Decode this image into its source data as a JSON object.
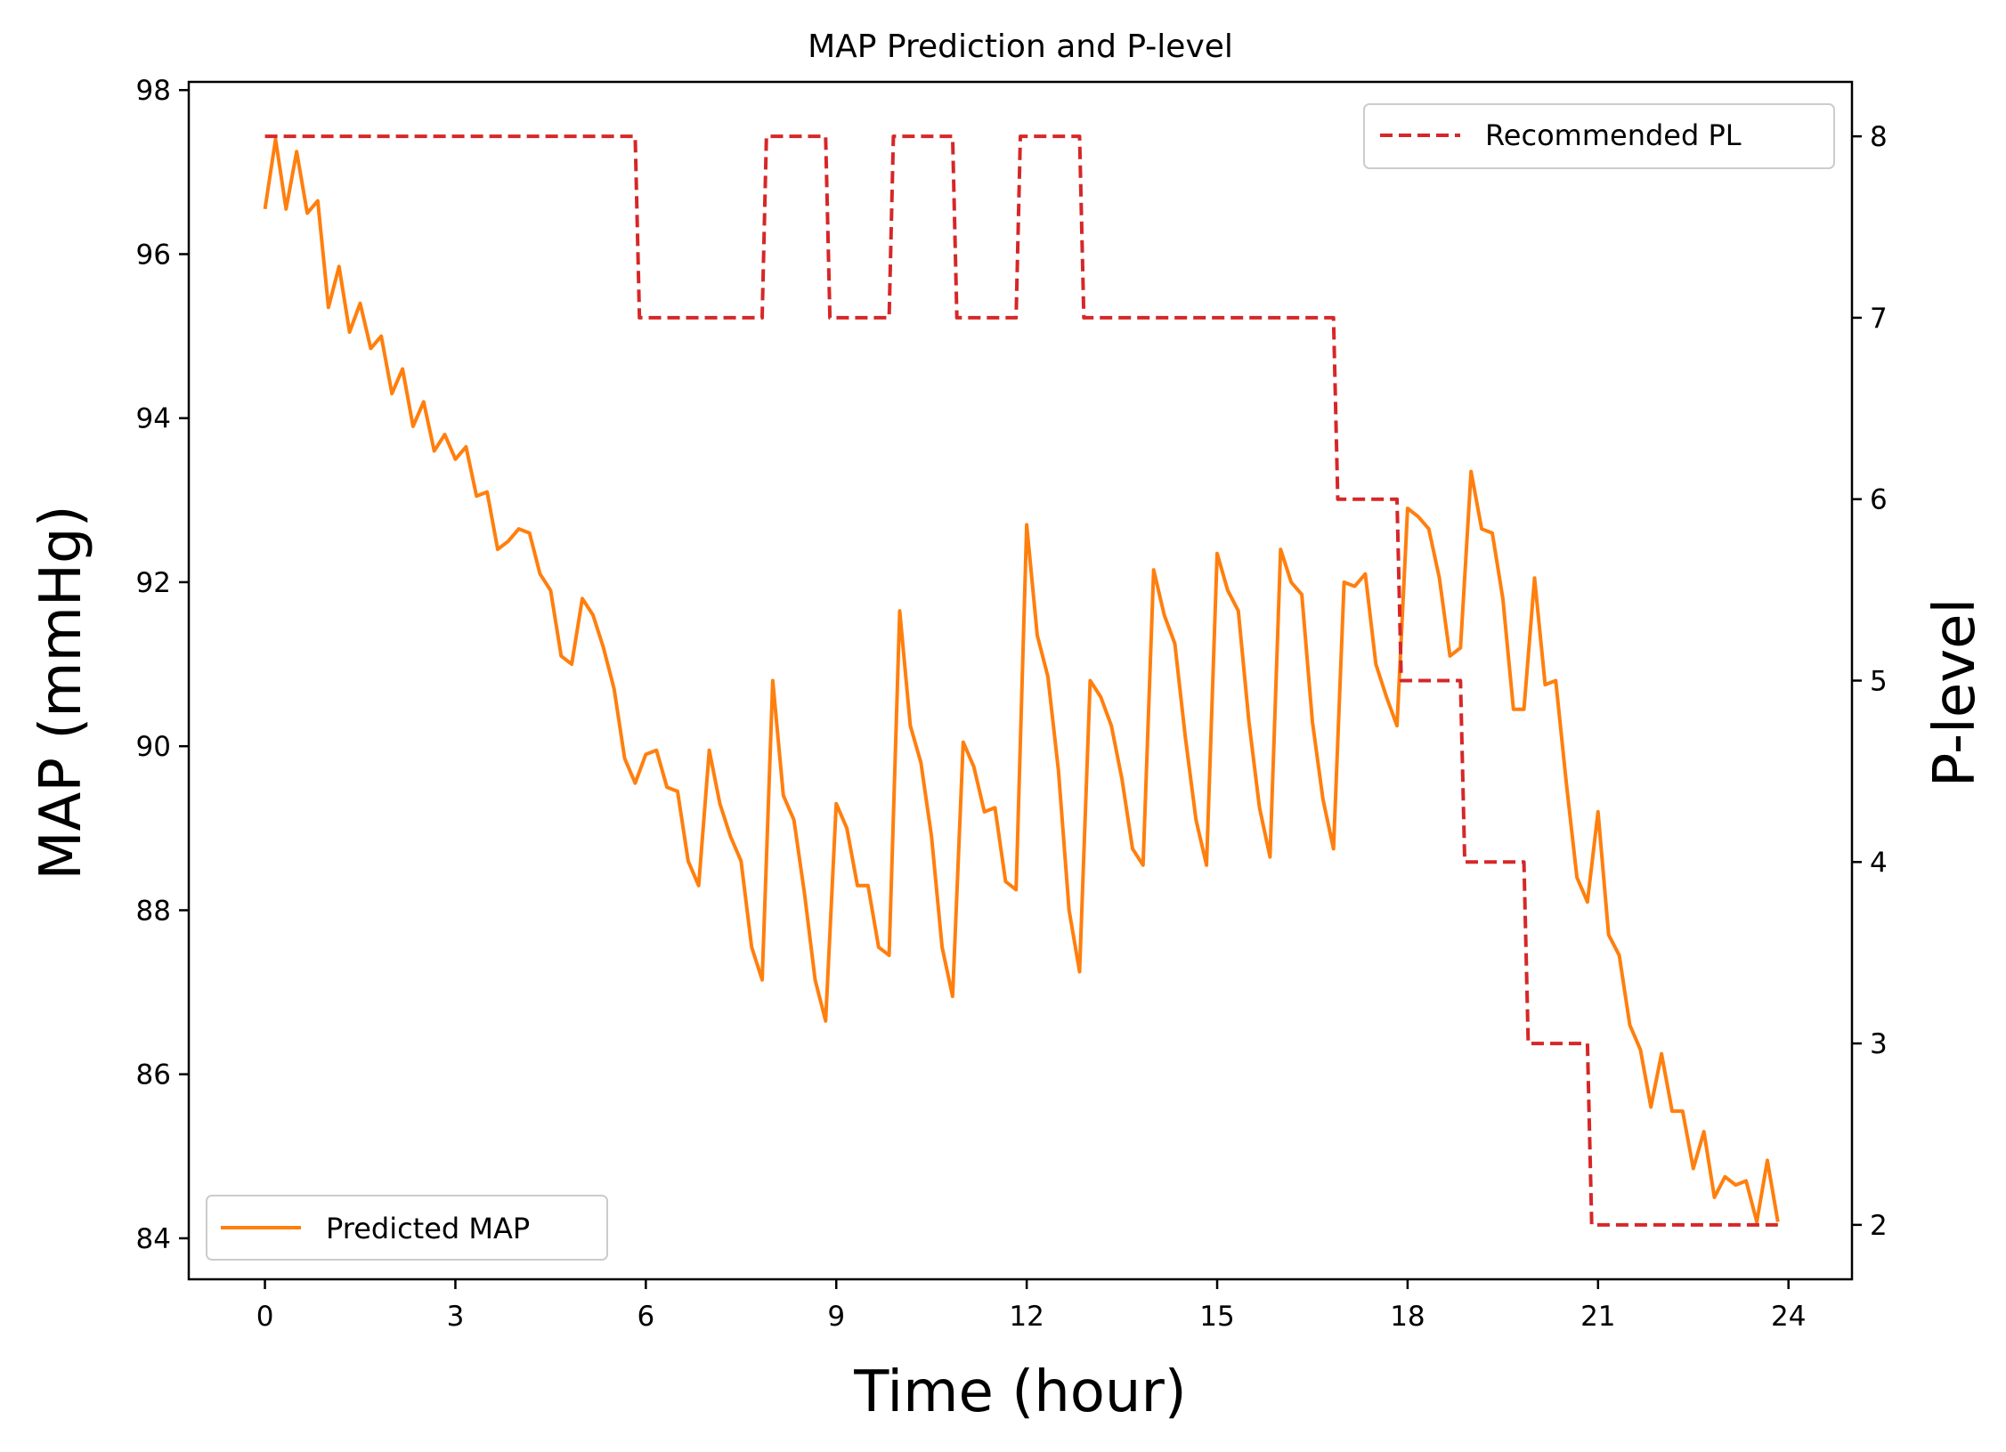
{
  "chart_data": {
    "type": "line",
    "title": "MAP Prediction and P-level",
    "xlabel": "Time (hour)",
    "ylabel": "MAP (mmHg)",
    "y2label": "P-level",
    "xlim": [
      -1.2,
      25
    ],
    "ylim": [
      83.5,
      98.1
    ],
    "y2lim": [
      1.7,
      8.3
    ],
    "xticks": [
      "0",
      "3",
      "6",
      "9",
      "12",
      "15",
      "18",
      "21",
      "24"
    ],
    "yticks": [
      "84",
      "86",
      "88",
      "90",
      "92",
      "94",
      "96",
      "98"
    ],
    "y2ticks": [
      "2",
      "3",
      "4",
      "5",
      "6",
      "7",
      "8"
    ],
    "grid": false,
    "legend": {
      "placement_primary": "lower-left",
      "placement_secondary": "upper-right"
    },
    "series": [
      {
        "name": "Predicted MAP",
        "axis": "left",
        "color": "#ff7f0e",
        "style": "solid",
        "x": [
          0,
          0.167,
          0.333,
          0.5,
          0.667,
          0.833,
          1,
          1.167,
          1.333,
          1.5,
          1.667,
          1.833,
          2,
          2.167,
          2.333,
          2.5,
          2.667,
          2.833,
          3,
          3.167,
          3.333,
          3.5,
          3.667,
          3.833,
          4,
          4.167,
          4.333,
          4.5,
          4.667,
          4.833,
          5,
          5.167,
          5.333,
          5.5,
          5.667,
          5.833,
          6,
          6.167,
          6.333,
          6.5,
          6.667,
          6.833,
          7,
          7.167,
          7.333,
          7.5,
          7.667,
          7.833,
          8,
          8.167,
          8.333,
          8.5,
          8.667,
          8.833,
          9,
          9.167,
          9.333,
          9.5,
          9.667,
          9.833,
          10,
          10.167,
          10.333,
          10.5,
          10.667,
          10.833,
          11,
          11.167,
          11.333,
          11.5,
          11.667,
          11.833,
          12,
          12.167,
          12.333,
          12.5,
          12.667,
          12.833,
          13,
          13.167,
          13.333,
          13.5,
          13.667,
          13.833,
          14,
          14.167,
          14.333,
          14.5,
          14.667,
          14.833,
          15,
          15.167,
          15.333,
          15.5,
          15.667,
          15.833,
          16,
          16.167,
          16.333,
          16.5,
          16.667,
          16.833,
          17,
          17.167,
          17.333,
          17.5,
          17.667,
          17.833,
          18,
          18.167,
          18.333,
          18.5,
          18.667,
          18.833,
          19,
          19.167,
          19.333,
          19.5,
          19.667,
          19.833,
          20,
          20.167,
          20.333,
          20.5,
          20.667,
          20.833,
          21,
          21.167,
          21.333,
          21.5,
          21.667,
          21.833,
          22,
          22.167,
          22.333,
          22.5,
          22.667,
          22.833,
          23,
          23.167,
          23.333,
          23.5,
          23.667,
          23.833
        ],
        "values": [
          96.55,
          97.4,
          96.55,
          97.25,
          96.5,
          96.65,
          95.35,
          95.85,
          95.05,
          95.4,
          94.85,
          95.0,
          94.3,
          94.6,
          93.9,
          94.2,
          93.6,
          93.8,
          93.5,
          93.65,
          93.05,
          93.1,
          92.4,
          92.5,
          92.65,
          92.6,
          92.1,
          91.9,
          91.1,
          91.0,
          91.8,
          91.6,
          91.2,
          90.7,
          89.85,
          89.55,
          89.9,
          89.95,
          89.5,
          89.45,
          88.6,
          88.3,
          89.95,
          89.3,
          88.9,
          88.6,
          87.55,
          87.15,
          90.8,
          89.4,
          89.1,
          88.2,
          87.15,
          86.65,
          89.3,
          89.0,
          88.3,
          88.3,
          87.55,
          87.45,
          91.65,
          90.25,
          89.8,
          88.9,
          87.55,
          86.95,
          90.05,
          89.75,
          89.2,
          89.25,
          88.35,
          88.25,
          92.7,
          91.35,
          90.85,
          89.7,
          88.0,
          87.25,
          90.8,
          90.6,
          90.25,
          89.6,
          88.75,
          88.55,
          92.15,
          91.6,
          91.25,
          90.1,
          89.1,
          88.55,
          92.35,
          91.9,
          91.65,
          90.3,
          89.25,
          88.65,
          92.4,
          92.0,
          91.85,
          90.3,
          89.35,
          88.75,
          92.0,
          91.95,
          92.1,
          91.0,
          90.6,
          90.25,
          92.9,
          92.8,
          92.65,
          92.05,
          91.1,
          91.2,
          93.35,
          92.65,
          92.6,
          91.8,
          90.45,
          90.45,
          92.05,
          90.75,
          90.8,
          89.55,
          88.4,
          88.1,
          89.2,
          87.7,
          87.45,
          86.6,
          86.3,
          85.6,
          86.25,
          85.55,
          85.55,
          84.85,
          85.3,
          84.5,
          84.75,
          84.65,
          84.7,
          84.2,
          84.95,
          84.2
        ]
      },
      {
        "name": "Recommended PL",
        "axis": "right",
        "color": "#d62728",
        "style": "dashed",
        "x": [
          0,
          5.833,
          5.9,
          7.833,
          7.9,
          8.833,
          8.9,
          9.833,
          9.9,
          10.833,
          10.9,
          11.833,
          11.9,
          12.833,
          12.9,
          16.833,
          16.9,
          17.833,
          17.9,
          18.833,
          18.9,
          19.833,
          19.9,
          20.833,
          20.9,
          23.833
        ],
        "values": [
          8,
          8,
          7,
          7,
          8,
          8,
          7,
          7,
          8,
          8,
          7,
          7,
          8,
          8,
          7,
          7,
          6,
          6,
          5,
          5,
          4,
          4,
          3,
          3,
          2,
          2
        ]
      }
    ]
  }
}
